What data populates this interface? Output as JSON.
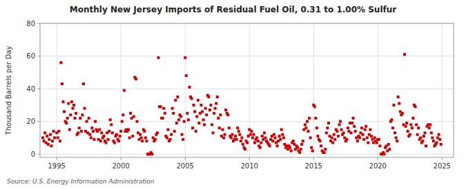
{
  "chart_data": {
    "type": "scatter",
    "title": "Monthly New Jersey Imports of Residual Fuel Oil, 0.31 to 1.00% Sulfur",
    "y_label": "Thousand Barrels per Day",
    "source": "Source: U.S. Energy Information Administration",
    "color": "#cc0000",
    "marker": "square",
    "grid": true,
    "xlim": [
      1993.7,
      2025.9
    ],
    "ylim": [
      -2,
      80
    ],
    "yticks": [
      0,
      20,
      40,
      60,
      80
    ],
    "xticks": [
      1995,
      2000,
      2005,
      2010,
      2015,
      2020,
      2025
    ],
    "x": [
      1993.917,
      1994.0,
      1994.083,
      1994.167,
      1994.25,
      1994.333,
      1994.417,
      1994.5,
      1994.583,
      1994.667,
      1994.75,
      1994.833,
      1995.0,
      1995.083,
      1995.167,
      1995.25,
      1995.333,
      1995.417,
      1995.5,
      1995.583,
      1995.667,
      1995.75,
      1995.833,
      1995.917,
      1996.0,
      1996.083,
      1996.167,
      1996.25,
      1996.333,
      1996.417,
      1996.5,
      1996.583,
      1996.667,
      1996.75,
      1996.833,
      1996.917,
      1997.0,
      1997.083,
      1997.167,
      1997.25,
      1997.333,
      1997.417,
      1997.5,
      1997.583,
      1997.667,
      1997.75,
      1997.833,
      1997.917,
      1998.0,
      1998.083,
      1998.167,
      1998.25,
      1998.333,
      1998.417,
      1998.5,
      1998.583,
      1998.667,
      1998.75,
      1998.833,
      1998.917,
      1999.0,
      1999.083,
      1999.167,
      1999.25,
      1999.333,
      1999.417,
      1999.5,
      1999.583,
      1999.667,
      1999.75,
      1999.833,
      1999.917,
      2000.0,
      2000.083,
      2000.167,
      2000.25,
      2000.333,
      2000.417,
      2000.5,
      2000.583,
      2000.667,
      2000.75,
      2000.833,
      2000.917,
      2001.0,
      2001.083,
      2001.167,
      2001.25,
      2001.333,
      2001.417,
      2001.5,
      2001.583,
      2001.667,
      2001.75,
      2001.833,
      2001.917,
      2002.0,
      2002.083,
      2002.167,
      2002.25,
      2002.333,
      2002.417,
      2002.5,
      2002.583,
      2002.667,
      2002.75,
      2002.833,
      2002.917,
      2003.0,
      2003.083,
      2003.167,
      2003.25,
      2003.333,
      2003.417,
      2003.5,
      2003.583,
      2003.667,
      2003.75,
      2003.833,
      2003.917,
      2004.0,
      2004.083,
      2004.167,
      2004.25,
      2004.333,
      2004.417,
      2004.5,
      2004.583,
      2004.667,
      2004.75,
      2004.833,
      2004.917,
      2005.0,
      2005.083,
      2005.167,
      2005.25,
      2005.333,
      2005.417,
      2005.5,
      2005.583,
      2005.667,
      2005.75,
      2005.833,
      2005.917,
      2006.0,
      2006.083,
      2006.167,
      2006.25,
      2006.333,
      2006.417,
      2006.5,
      2006.583,
      2006.667,
      2006.75,
      2006.833,
      2006.917,
      2007.0,
      2007.083,
      2007.167,
      2007.25,
      2007.333,
      2007.417,
      2007.5,
      2007.583,
      2007.667,
      2007.75,
      2007.833,
      2007.917,
      2008.0,
      2008.083,
      2008.167,
      2008.25,
      2008.333,
      2008.417,
      2008.5,
      2008.583,
      2008.667,
      2008.75,
      2008.833,
      2008.917,
      2009.0,
      2009.083,
      2009.167,
      2009.25,
      2009.333,
      2009.417,
      2009.5,
      2009.583,
      2009.667,
      2009.75,
      2009.833,
      2009.917,
      2010.0,
      2010.083,
      2010.167,
      2010.25,
      2010.333,
      2010.417,
      2010.5,
      2010.583,
      2010.667,
      2010.75,
      2010.833,
      2010.917,
      2011.0,
      2011.083,
      2011.167,
      2011.25,
      2011.333,
      2011.417,
      2011.5,
      2011.583,
      2011.667,
      2011.75,
      2011.833,
      2011.917,
      2012.0,
      2012.083,
      2012.167,
      2012.25,
      2012.333,
      2012.417,
      2012.5,
      2012.583,
      2012.667,
      2012.75,
      2012.833,
      2012.917,
      2013.0,
      2013.083,
      2013.167,
      2013.25,
      2013.333,
      2013.417,
      2013.5,
      2013.583,
      2013.667,
      2013.75,
      2013.833,
      2013.917,
      2014.0,
      2014.083,
      2014.167,
      2014.25,
      2014.333,
      2014.417,
      2014.5,
      2014.583,
      2014.667,
      2014.75,
      2014.833,
      2014.917,
      2015.0,
      2015.083,
      2015.167,
      2015.25,
      2015.333,
      2015.417,
      2015.5,
      2015.583,
      2015.667,
      2015.75,
      2015.833,
      2015.917,
      2016.0,
      2016.083,
      2016.167,
      2016.25,
      2016.333,
      2016.417,
      2016.5,
      2016.583,
      2016.667,
      2016.75,
      2016.833,
      2016.917,
      2017.0,
      2017.083,
      2017.167,
      2017.25,
      2017.333,
      2017.417,
      2017.5,
      2017.583,
      2017.667,
      2017.75,
      2017.833,
      2017.917,
      2018.0,
      2018.083,
      2018.167,
      2018.25,
      2018.333,
      2018.417,
      2018.5,
      2018.583,
      2018.667,
      2018.75,
      2018.833,
      2018.917,
      2019.0,
      2019.083,
      2019.167,
      2019.25,
      2019.333,
      2019.417,
      2019.5,
      2019.583,
      2019.667,
      2019.75,
      2019.833,
      2019.917,
      2020.0,
      2020.083,
      2020.167,
      2020.25,
      2020.333,
      2020.417,
      2020.5,
      2020.583,
      2020.667,
      2020.75,
      2020.833,
      2020.917,
      2021.0,
      2021.083,
      2021.167,
      2021.25,
      2021.333,
      2021.417,
      2021.5,
      2021.583,
      2021.667,
      2021.75,
      2021.833,
      2021.917,
      2022.0,
      2022.083,
      2022.167,
      2022.25,
      2022.333,
      2022.417,
      2022.5,
      2022.583,
      2022.667,
      2022.75,
      2022.833,
      2022.917,
      2023.0,
      2023.083,
      2023.167,
      2023.25,
      2023.333,
      2023.417,
      2023.5,
      2023.583,
      2023.667,
      2023.75,
      2023.833,
      2023.917,
      2024.0,
      2024.083,
      2024.167,
      2024.25,
      2024.333,
      2024.417,
      2024.5,
      2024.583,
      2024.667,
      2024.75,
      2024.833,
      2024.917
    ],
    "values": [
      10,
      8,
      13,
      7,
      11,
      6,
      9,
      12,
      5,
      8,
      14,
      10,
      13,
      10,
      14,
      8,
      56,
      43,
      32,
      26,
      20,
      19,
      22,
      31,
      15,
      24,
      32,
      28,
      30,
      22,
      25,
      12,
      13,
      16,
      22,
      14,
      24,
      43,
      28,
      14,
      20,
      13,
      22,
      12,
      10,
      16,
      14,
      9,
      20,
      15,
      14,
      9,
      15,
      8,
      13,
      10,
      11,
      8,
      7,
      13,
      9,
      14,
      21,
      18,
      13,
      8,
      7,
      11,
      12,
      9,
      8,
      11,
      14,
      20,
      24,
      39,
      14,
      15,
      14,
      15,
      10,
      25,
      22,
      11,
      23,
      47,
      46,
      20,
      13,
      9,
      12,
      10,
      8,
      15,
      14,
      10,
      8,
      0,
      0,
      0,
      1,
      0,
      10,
      8,
      9,
      12,
      13,
      59,
      29,
      29,
      22,
      22,
      28,
      25,
      11,
      10,
      15,
      8,
      9,
      12,
      28,
      25,
      14,
      33,
      19,
      35,
      21,
      24,
      23,
      12,
      9,
      20,
      59,
      48,
      25,
      21,
      41,
      35,
      34,
      16,
      30,
      26,
      14,
      23,
      33,
      19,
      25,
      30,
      26,
      21,
      18,
      28,
      24,
      36,
      35,
      27,
      30,
      18,
      13,
      25,
      28,
      31,
      35,
      22,
      16,
      24,
      11,
      15,
      10,
      12,
      27,
      25,
      24,
      16,
      11,
      10,
      12,
      8,
      9,
      11,
      9,
      16,
      14,
      12,
      8,
      10,
      6,
      4,
      3,
      8,
      7,
      11,
      15,
      12,
      14,
      10,
      12,
      7,
      9,
      10,
      8,
      5,
      4,
      7,
      11,
      9,
      13,
      10,
      8,
      7,
      6,
      5,
      9,
      11,
      8,
      12,
      10,
      7,
      5,
      8,
      11,
      9,
      15,
      12,
      10,
      6,
      4,
      5,
      3,
      5,
      4,
      2,
      7,
      8,
      6,
      3,
      5,
      4,
      2,
      1,
      3,
      6,
      8,
      15,
      18,
      16,
      20,
      14,
      22,
      10,
      4,
      2,
      30,
      29,
      22,
      16,
      11,
      9,
      8,
      5,
      2,
      1,
      1,
      3,
      13,
      16,
      19,
      11,
      8,
      10,
      7,
      12,
      9,
      15,
      14,
      11,
      18,
      20,
      15,
      12,
      13,
      10,
      8,
      9,
      16,
      14,
      19,
      13,
      19,
      22,
      17,
      14,
      10,
      8,
      11,
      10,
      13,
      16,
      12,
      9,
      15,
      17,
      10,
      7,
      12,
      15,
      11,
      9,
      7,
      10,
      8,
      7,
      9,
      9,
      5,
      0,
      0,
      1,
      0,
      4,
      5,
      2,
      6,
      3,
      20,
      21,
      16,
      30,
      13,
      10,
      8,
      35,
      31,
      26,
      24,
      25,
      18,
      61,
      17,
      19,
      14,
      11,
      12,
      18,
      16,
      22,
      30,
      29,
      18,
      12,
      16,
      9,
      10,
      7,
      8,
      11,
      13,
      5,
      17,
      18,
      16,
      18,
      13,
      10,
      8,
      5,
      6,
      7,
      10,
      12,
      9,
      6
    ]
  }
}
